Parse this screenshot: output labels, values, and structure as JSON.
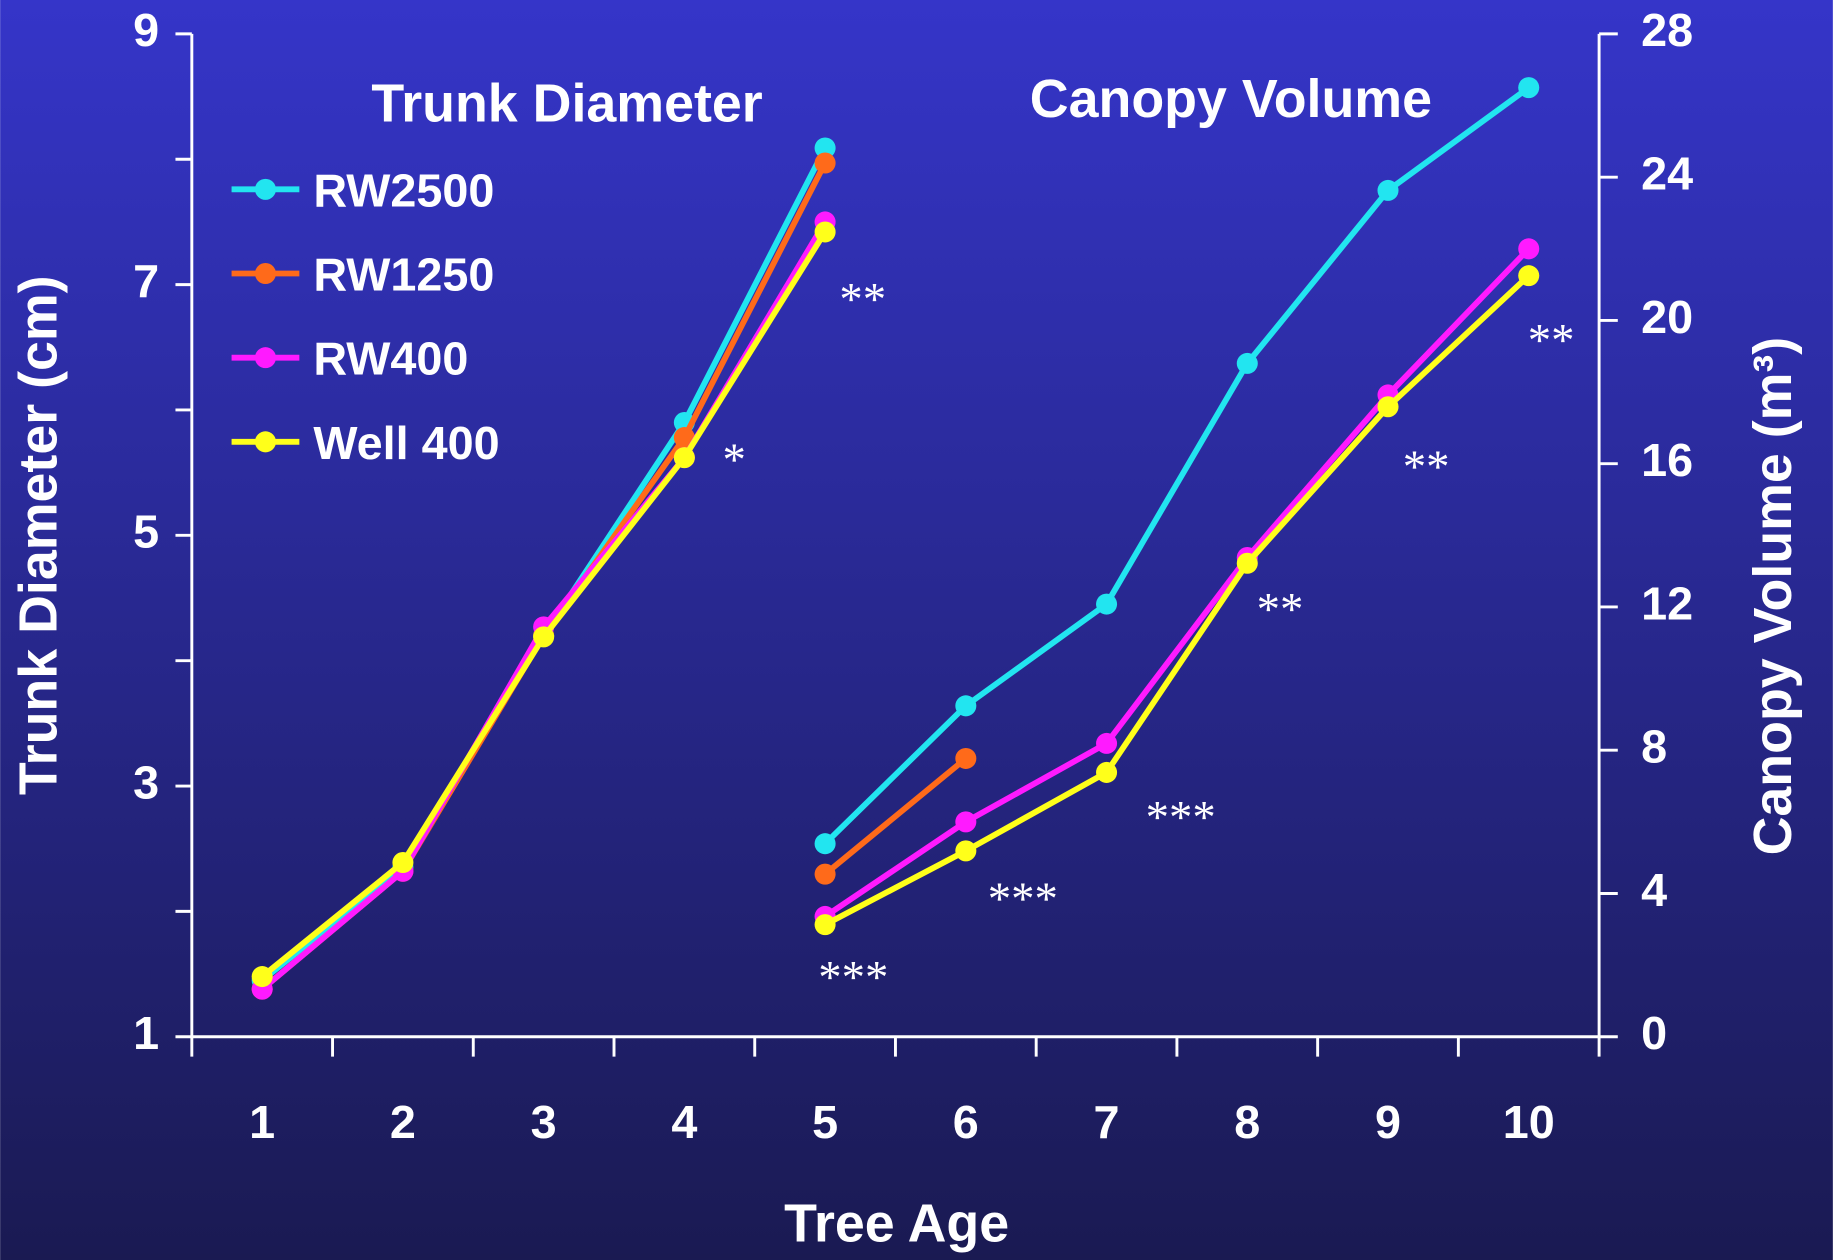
{
  "chart_data": {
    "type": "line",
    "titles": [
      "Trunk Diameter",
      "Canopy Volume"
    ],
    "x_label": "Tree Age",
    "y_label": "Trunk Diameter (cm)",
    "y2_label": "Canopy Volume (m³)",
    "categories": [
      "1",
      "2",
      "3",
      "4",
      "5",
      "6",
      "7",
      "8",
      "9",
      "10"
    ],
    "ylim": [
      1,
      9
    ],
    "yticks": [
      1,
      3,
      5,
      7,
      9
    ],
    "yminorticks": [
      2,
      4,
      6,
      8
    ],
    "y2lim": [
      0,
      28
    ],
    "y2ticks": [
      0,
      4,
      8,
      12,
      16,
      20,
      24,
      28
    ],
    "series": [
      {
        "name": "RW2500",
        "color": "#22e5f0",
        "values": [
          1.45,
          2.35,
          4.2,
          5.9,
          8.09,
          null,
          null,
          null,
          null,
          null
        ],
        "y2_values": [
          null,
          null,
          null,
          null,
          5.39,
          9.24,
          12.08,
          18.8,
          23.63,
          26.5
        ]
      },
      {
        "name": "RW1250",
        "color": "#ff6a1a",
        "values": [
          1.38,
          2.32,
          4.2,
          5.78,
          7.97,
          null,
          null,
          null,
          null,
          null
        ],
        "y2_values": [
          null,
          null,
          null,
          null,
          4.54,
          7.77,
          null,
          null,
          null,
          null
        ]
      },
      {
        "name": "RW400",
        "color": "#ff1aff",
        "values": [
          1.38,
          2.32,
          4.27,
          5.62,
          7.5,
          null,
          null,
          null,
          null,
          null
        ],
        "y2_values": [
          null,
          null,
          null,
          null,
          3.36,
          6.0,
          8.19,
          13.38,
          17.92,
          22.0
        ]
      },
      {
        "name": "Well 400",
        "color": "#ffff1a",
        "values": [
          1.48,
          2.39,
          4.19,
          5.62,
          7.42,
          null,
          null,
          null,
          null,
          null
        ],
        "y2_values": [
          null,
          null,
          null,
          null,
          3.13,
          5.19,
          7.38,
          13.22,
          17.59,
          21.25
        ]
      }
    ],
    "annotations": [
      "**",
      "*",
      "***",
      "***",
      "***",
      "**",
      "**",
      "**"
    ]
  }
}
